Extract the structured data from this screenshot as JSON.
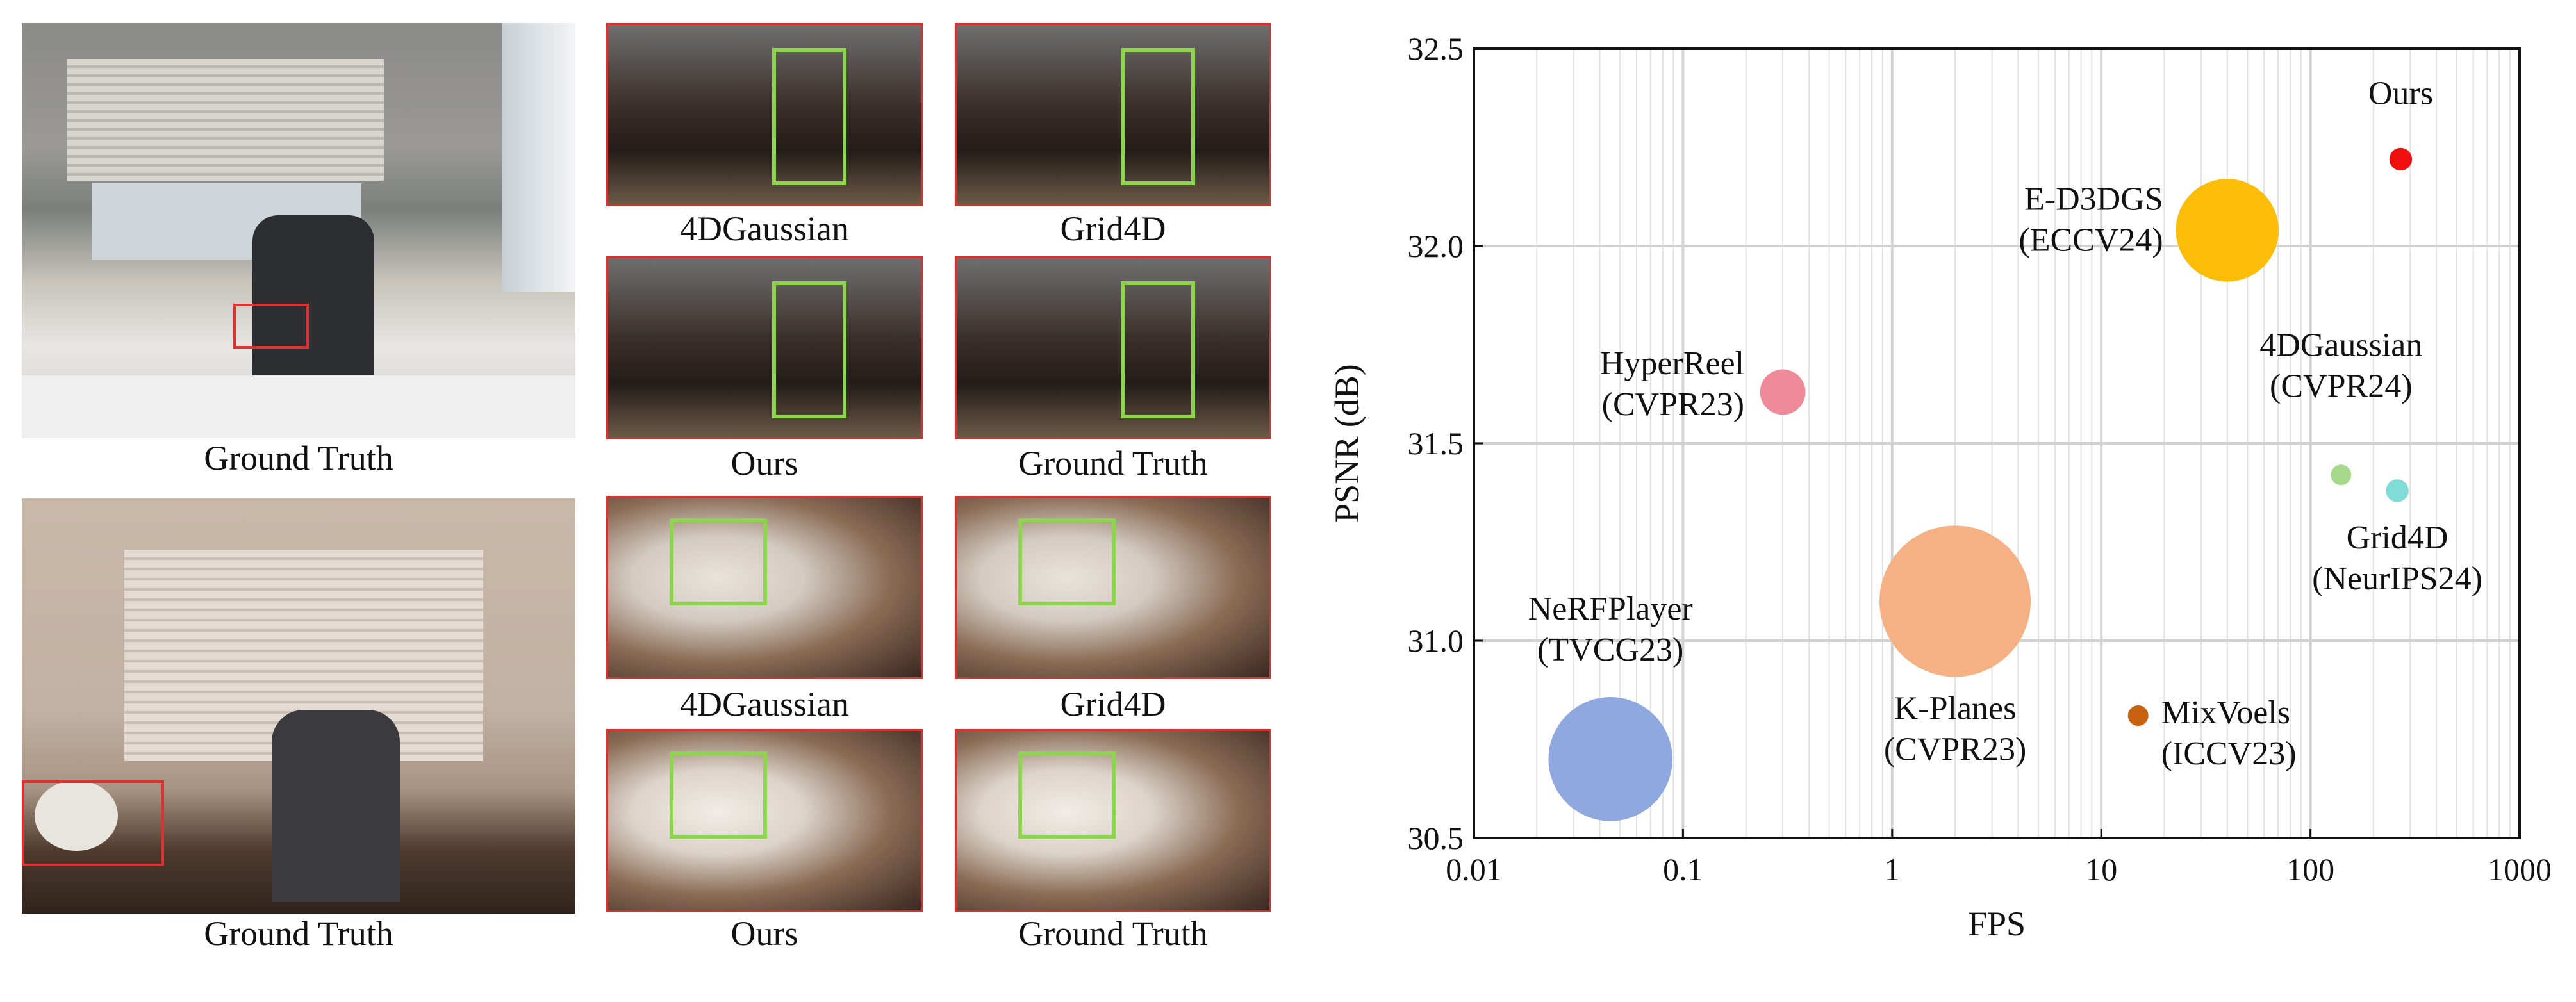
{
  "figure": {
    "scene1": {
      "gt_caption": "Ground Truth",
      "crops": [
        {
          "caption": "4DGaussian"
        },
        {
          "caption": "Grid4D"
        },
        {
          "caption": "Ours"
        },
        {
          "caption": "Ground Truth"
        }
      ]
    },
    "scene2": {
      "gt_caption": "Ground Truth",
      "crops": [
        {
          "caption": "4DGaussian"
        },
        {
          "caption": "Grid4D"
        },
        {
          "caption": "Ours"
        },
        {
          "caption": "Ground Truth"
        }
      ]
    }
  },
  "chart_data": {
    "type": "scatter",
    "title": "",
    "xlabel": "FPS",
    "ylabel": "PSNR (dB)",
    "xscale": "log",
    "xlim": [
      0.01,
      1000
    ],
    "ylim": [
      30.5,
      32.5
    ],
    "xticks": [
      "0.01",
      "0.1",
      "1",
      "10",
      "100",
      "1000"
    ],
    "yticks": [
      "30.5",
      "31.0",
      "31.5",
      "32.0",
      "32.5"
    ],
    "grid": true,
    "points": [
      {
        "name": "Ours",
        "venue": "",
        "fps": 270,
        "psnr": 32.22,
        "size": 0.15,
        "color": "#f01010"
      },
      {
        "name": "E-D3DGS",
        "venue": "(ECCV24)",
        "fps": 40,
        "psnr": 32.04,
        "size": 0.68,
        "color": "#fbbd08"
      },
      {
        "name": "HyperReel",
        "venue": "(CVPR23)",
        "fps": 0.3,
        "psnr": 31.63,
        "size": 0.3,
        "color": "#ef8b99"
      },
      {
        "name": "4DGaussian",
        "venue": "(CVPR24)",
        "fps": 140,
        "psnr": 31.42,
        "size": 0.13,
        "color": "#a6d98b"
      },
      {
        "name": "Grid4D",
        "venue": "(NeurIPS24)",
        "fps": 260,
        "psnr": 31.38,
        "size": 0.15,
        "color": "#7fdcd6"
      },
      {
        "name": "K-Planes",
        "venue": "(CVPR23)",
        "fps": 2,
        "psnr": 31.1,
        "size": 1.0,
        "color": "#f5b184"
      },
      {
        "name": "NeRFPlayer",
        "venue": "(TVCG23)",
        "fps": 0.045,
        "psnr": 30.7,
        "size": 0.82,
        "color": "#8fa9e0"
      },
      {
        "name": "MixVoels",
        "venue": "(ICCV23)",
        "fps": 15,
        "psnr": 30.81,
        "size": 0.09,
        "color": "#c8620f"
      }
    ]
  }
}
